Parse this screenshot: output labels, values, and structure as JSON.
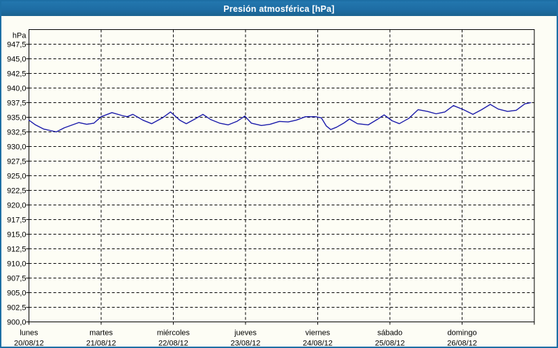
{
  "window": {
    "title": "Presión atmosférica [hPa]",
    "accent_color": "#1e6da4",
    "frame_color": "#1d6fa5",
    "background_color": "#fdfdf5"
  },
  "chart_data": {
    "type": "line",
    "title": "Presión atmosférica [hPa]",
    "ylabel": "hPa",
    "unit_label": "hPa",
    "ylim": [
      900,
      950
    ],
    "y_tick_step": 2.5,
    "grid": true,
    "grid_style": "black-dashed",
    "line_color": "#1a1aaa",
    "y_ticks": [
      {
        "v": 947.5,
        "label": "947,5"
      },
      {
        "v": 945.0,
        "label": "945,0"
      },
      {
        "v": 942.5,
        "label": "942,5"
      },
      {
        "v": 940.0,
        "label": "940,0"
      },
      {
        "v": 937.5,
        "label": "937,5"
      },
      {
        "v": 935.0,
        "label": "935,0"
      },
      {
        "v": 932.5,
        "label": "932,5"
      },
      {
        "v": 930.0,
        "label": "930,0"
      },
      {
        "v": 927.5,
        "label": "927,5"
      },
      {
        "v": 925.0,
        "label": "925,0"
      },
      {
        "v": 922.5,
        "label": "922,5"
      },
      {
        "v": 920.0,
        "label": "920,0"
      },
      {
        "v": 917.5,
        "label": "917,5"
      },
      {
        "v": 915.0,
        "label": "915,0"
      },
      {
        "v": 912.5,
        "label": "912,5"
      },
      {
        "v": 910.0,
        "label": "910,0"
      },
      {
        "v": 907.5,
        "label": "907,5"
      },
      {
        "v": 905.0,
        "label": "905,0"
      },
      {
        "v": 902.5,
        "label": "902,5"
      },
      {
        "v": 900.0,
        "label": "900,0"
      }
    ],
    "x_days": [
      {
        "name": "lunes",
        "date": "20/08/12"
      },
      {
        "name": "martes",
        "date": "21/08/12"
      },
      {
        "name": "miércoles",
        "date": "22/08/12"
      },
      {
        "name": "jueves",
        "date": "23/08/12"
      },
      {
        "name": "viernes",
        "date": "24/08/12"
      },
      {
        "name": "sábado",
        "date": "25/08/12"
      },
      {
        "name": "domingo",
        "date": "26/08/12"
      }
    ],
    "x_range_days": [
      0,
      7
    ],
    "series": [
      {
        "name": "Presión atmosférica",
        "color": "#1a1aaa",
        "points": [
          [
            0.0,
            934.5
          ],
          [
            0.09,
            933.7
          ],
          [
            0.2,
            933.0
          ],
          [
            0.38,
            932.5
          ],
          [
            0.49,
            933.2
          ],
          [
            0.69,
            934.1
          ],
          [
            0.8,
            933.8
          ],
          [
            0.9,
            934.0
          ],
          [
            1.0,
            935.1
          ],
          [
            1.15,
            935.8
          ],
          [
            1.29,
            935.3
          ],
          [
            1.36,
            935.1
          ],
          [
            1.44,
            935.5
          ],
          [
            1.58,
            934.5
          ],
          [
            1.7,
            933.9
          ],
          [
            1.85,
            934.9
          ],
          [
            1.96,
            935.9
          ],
          [
            2.09,
            934.5
          ],
          [
            2.18,
            933.9
          ],
          [
            2.3,
            934.7
          ],
          [
            2.41,
            935.5
          ],
          [
            2.52,
            934.6
          ],
          [
            2.64,
            934.0
          ],
          [
            2.76,
            933.7
          ],
          [
            2.88,
            934.3
          ],
          [
            2.99,
            935.2
          ],
          [
            3.08,
            934.0
          ],
          [
            3.22,
            933.6
          ],
          [
            3.34,
            933.8
          ],
          [
            3.47,
            934.3
          ],
          [
            3.59,
            934.2
          ],
          [
            3.7,
            934.5
          ],
          [
            3.83,
            935.1
          ],
          [
            3.97,
            935.1
          ],
          [
            4.05,
            934.9
          ],
          [
            4.12,
            933.5
          ],
          [
            4.18,
            932.9
          ],
          [
            4.26,
            933.3
          ],
          [
            4.36,
            934.0
          ],
          [
            4.44,
            934.7
          ],
          [
            4.55,
            933.9
          ],
          [
            4.7,
            933.7
          ],
          [
            4.82,
            934.6
          ],
          [
            4.92,
            935.4
          ],
          [
            5.03,
            934.4
          ],
          [
            5.13,
            933.9
          ],
          [
            5.26,
            934.8
          ],
          [
            5.39,
            936.3
          ],
          [
            5.52,
            936.0
          ],
          [
            5.64,
            935.6
          ],
          [
            5.76,
            935.9
          ],
          [
            5.88,
            937.0
          ],
          [
            6.02,
            936.3
          ],
          [
            6.15,
            935.5
          ],
          [
            6.27,
            936.3
          ],
          [
            6.39,
            937.2
          ],
          [
            6.5,
            936.4
          ],
          [
            6.63,
            936.0
          ],
          [
            6.75,
            936.2
          ],
          [
            6.87,
            937.3
          ],
          [
            6.95,
            937.5
          ]
        ]
      }
    ]
  }
}
